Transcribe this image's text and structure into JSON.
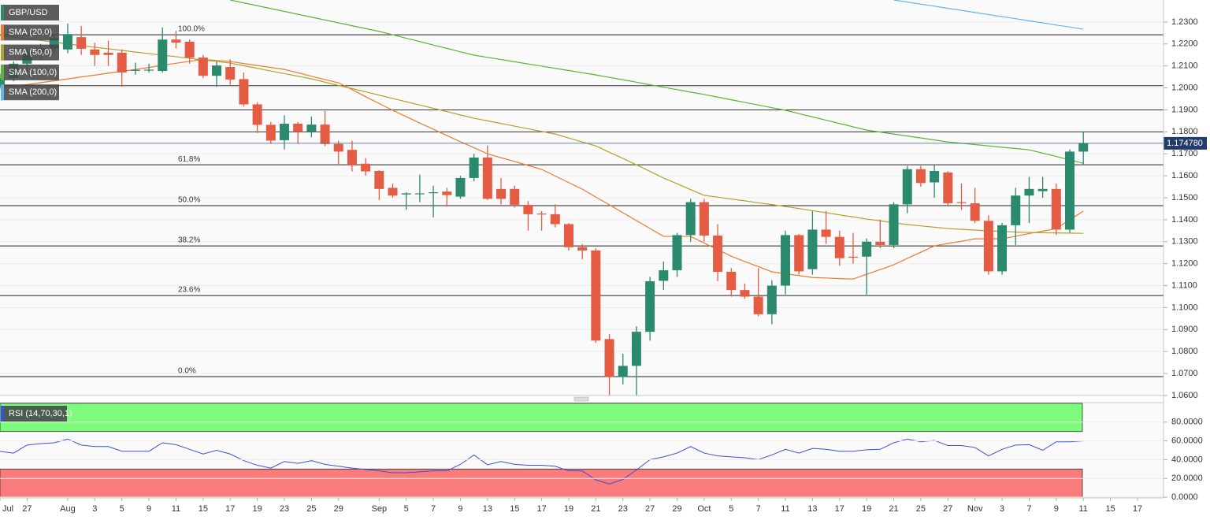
{
  "chart_data": [
    {
      "type": "candlestick",
      "categories": [
        "Jul",
        null,
        "27",
        null,
        null,
        "Aug",
        null,
        "3",
        null,
        "5",
        null,
        "9",
        null,
        "11",
        null,
        "15",
        null,
        "17",
        null,
        "19",
        null,
        "23",
        null,
        "25",
        null,
        "29",
        null,
        null,
        "Sep",
        null,
        "5",
        null,
        "7",
        null,
        "9",
        null,
        "13",
        null,
        "15",
        null,
        "17",
        null,
        "19",
        null,
        "21",
        null,
        "23",
        null,
        "27",
        null,
        "29",
        null,
        "Oct",
        null,
        "5",
        null,
        "7",
        null,
        "11",
        null,
        "13",
        null,
        "17",
        null,
        "19",
        null,
        "21",
        null,
        "25",
        null,
        "27",
        null,
        "Nov",
        null,
        "3",
        null,
        "7",
        null,
        "9",
        null,
        "11",
        null,
        "15",
        null,
        "17"
      ],
      "series": [
        {
          "name": "GBP/USD",
          "up_color": "#2b8a6e",
          "down_color": "#e35c43",
          "open": [
            1.201,
            1.2045,
            1.211,
            1.2165,
            1.218,
            1.2175,
            1.2231,
            1.2175,
            1.216,
            1.216,
            1.2078,
            1.208,
            1.2077,
            1.222,
            1.221,
            1.2138,
            1.2055,
            1.2095,
            1.204,
            1.1925,
            1.1832,
            1.1762,
            1.1837,
            1.18,
            1.1833,
            1.1745,
            1.1718,
            1.1655,
            1.1622,
            1.1545,
            1.1515,
            1.1518,
            1.1522,
            1.1528,
            1.1505,
            1.159,
            1.1683,
            1.154,
            1.154,
            1.1468,
            1.1428,
            1.1425,
            1.138,
            1.1275,
            1.126,
            1.0857,
            1.0685,
            1.0735,
            1.089,
            1.1122,
            1.117,
            1.133,
            1.148,
            1.1328,
            1.1163,
            1.108,
            1.105,
            1.097,
            1.11,
            1.133,
            1.1175,
            1.1355,
            1.1322,
            1.1232,
            1.1232,
            1.13,
            1.1285,
            1.147,
            1.163,
            1.157,
            1.1615,
            1.148,
            1.1475,
            1.1395,
            1.1165,
            1.1375,
            1.151,
            1.153,
            1.154,
            1.1355,
            1.171,
            null,
            null,
            null,
            null
          ],
          "high": [
            1.2065,
            1.212,
            1.218,
            1.22,
            1.2245,
            1.2293,
            1.2282,
            1.2205,
            1.2215,
            1.2175,
            1.2115,
            1.211,
            1.2275,
            1.226,
            1.222,
            1.215,
            1.212,
            1.213,
            1.207,
            1.1935,
            1.1845,
            1.1875,
            1.1845,
            1.187,
            1.1895,
            1.176,
            1.176,
            1.168,
            1.1625,
            1.1565,
            1.1525,
            1.1605,
            1.1555,
            1.1545,
            1.16,
            1.17,
            1.1738,
            1.159,
            1.1555,
            1.1485,
            1.144,
            1.147,
            1.1385,
            1.129,
            1.127,
            1.088,
            1.079,
            1.0915,
            1.114,
            1.121,
            1.134,
            1.1495,
            1.1495,
            1.138,
            1.118,
            1.111,
            1.118,
            1.1125,
            1.135,
            1.1335,
            1.144,
            1.144,
            1.135,
            1.134,
            1.1315,
            1.14,
            1.148,
            1.1645,
            1.1645,
            1.165,
            1.162,
            1.1565,
            1.1545,
            1.142,
            1.1385,
            1.1545,
            1.1595,
            1.1595,
            1.1565,
            1.172,
            1.18,
            null,
            null,
            null,
            null
          ],
          "low": [
            1.2,
            1.203,
            1.206,
            1.213,
            1.216,
            1.2158,
            1.215,
            1.21,
            1.21,
            1.2005,
            1.206,
            1.207,
            1.207,
            1.218,
            1.211,
            1.2045,
            1.2005,
            1.2015,
            1.1915,
            1.1795,
            1.1745,
            1.172,
            1.1745,
            1.1775,
            1.1735,
            1.165,
            1.162,
            1.16,
            1.149,
            1.15,
            1.1445,
            1.148,
            1.141,
            1.146,
            1.1495,
            1.1575,
            1.149,
            1.147,
            1.1455,
            1.135,
            1.135,
            1.1365,
            1.126,
            1.122,
            1.084,
            1.06,
            1.065,
            1.06,
            1.085,
            1.108,
            1.114,
            1.13,
            1.13,
            1.112,
            1.105,
            1.104,
            1.096,
            1.0925,
            1.106,
            1.115,
            1.115,
            1.129,
            1.119,
            1.12,
            1.106,
            1.127,
            1.127,
            1.143,
            1.155,
            1.15,
            1.146,
            1.1445,
            1.1385,
            1.115,
            1.115,
            1.1285,
            1.1385,
            1.15,
            1.133,
            1.134,
            1.165,
            null,
            null,
            null,
            null
          ],
          "close": [
            1.2045,
            1.211,
            1.2165,
            1.218,
            1.2225,
            1.2245,
            1.2178,
            1.215,
            1.215,
            1.207,
            1.2082,
            1.2083,
            1.222,
            1.2206,
            1.2138,
            1.2055,
            1.2102,
            1.2038,
            1.1925,
            1.1832,
            1.176,
            1.1837,
            1.18,
            1.1833,
            1.1745,
            1.171,
            1.1647,
            1.162,
            1.154,
            1.151,
            1.152,
            1.152,
            1.1525,
            1.1512,
            1.159,
            1.1683,
            1.1495,
            1.1495,
            1.1468,
            1.1425,
            1.1425,
            1.138,
            1.1275,
            1.126,
            1.085,
            1.0685,
            1.0735,
            1.089,
            1.112,
            1.117,
            1.133,
            1.148,
            1.1328,
            1.1163,
            1.108,
            1.105,
            1.097,
            1.11,
            1.133,
            1.1165,
            1.1355,
            1.1322,
            1.1225,
            1.123,
            1.13,
            1.1285,
            1.147,
            1.163,
            1.1567,
            1.1622,
            1.1475,
            1.1478,
            1.1395,
            1.1165,
            1.1375,
            1.151,
            1.154,
            1.154,
            1.1355,
            1.171,
            1.1748,
            null,
            null,
            null,
            null
          ]
        },
        {
          "name": "SMA (20,0)",
          "color": "#ec7a2f",
          "values": [
            1.1998,
            1.2007,
            1.2015,
            1.2024,
            1.2032,
            1.2041,
            1.205,
            1.2058,
            1.2067,
            1.2075,
            1.2084,
            1.2093,
            1.2103,
            1.2112,
            1.2121,
            1.213,
            1.2125,
            1.212,
            1.2111,
            1.2102,
            1.2093,
            1.2084,
            1.2069,
            1.2053,
            1.2038,
            1.2023,
            1.1992,
            1.196,
            1.1929,
            1.1898,
            1.1869,
            1.184,
            1.1812,
            1.1783,
            1.1755,
            1.1728,
            1.17,
            1.1682,
            1.1665,
            1.1647,
            1.1629,
            1.1599,
            1.1569,
            1.1539,
            1.1503,
            1.1468,
            1.1432,
            1.1396,
            1.136,
            1.1324,
            1.1324,
            1.1324,
            1.1294,
            1.1264,
            1.1234,
            1.121,
            1.1187,
            1.1163,
            1.1154,
            1.1146,
            1.1137,
            1.1135,
            1.1132,
            1.113,
            1.1152,
            1.1173,
            1.1195,
            1.1224,
            1.1252,
            1.1281,
            1.1292,
            1.1302,
            1.1313,
            1.1313,
            1.1313,
            1.1325,
            1.1337,
            1.1348,
            1.136,
            1.14,
            1.1439,
            null,
            null,
            null,
            null
          ]
        },
        {
          "name": "SMA (50,0)",
          "color": "#b3a02c",
          "values": [
            1.2239,
            1.2231,
            1.2223,
            1.2216,
            1.2208,
            1.22,
            1.2192,
            1.2185,
            1.2178,
            1.2171,
            1.2163,
            1.2156,
            1.2149,
            1.2142,
            1.2135,
            1.2127,
            1.212,
            1.2113,
            1.2101,
            1.2089,
            1.2077,
            1.2065,
            1.2053,
            1.2041,
            1.2026,
            1.2011,
            1.1997,
            1.1982,
            1.1967,
            1.1952,
            1.1937,
            1.1922,
            1.1907,
            1.1892,
            1.1877,
            1.1862,
            1.185,
            1.1838,
            1.1826,
            1.1814,
            1.1802,
            1.179,
            1.1772,
            1.1754,
            1.1736,
            1.1707,
            1.1679,
            1.165,
            1.162,
            1.159,
            1.1564,
            1.1537,
            1.1511,
            1.1503,
            1.1494,
            1.1486,
            1.1477,
            1.1469,
            1.146,
            1.1451,
            1.1441,
            1.1432,
            1.1422,
            1.1413,
            1.1403,
            1.1395,
            1.1386,
            1.1378,
            1.1372,
            1.1366,
            1.136,
            1.1356,
            1.1353,
            1.1349,
            1.1347,
            1.1344,
            1.1342,
            1.1341,
            1.134,
            1.1339,
            1.1338,
            null,
            null,
            null,
            null
          ]
        },
        {
          "name": "SMA (100,0)",
          "color": "#5cb336",
          "values": [
            null,
            null,
            null,
            null,
            null,
            null,
            null,
            null,
            null,
            null,
            null,
            null,
            null,
            null,
            null,
            null,
            null,
            1.24,
            1.2387,
            1.2374,
            1.2361,
            1.2348,
            1.2335,
            1.2322,
            1.2309,
            1.2296,
            1.2283,
            1.227,
            1.2257,
            1.2242,
            1.2226,
            1.2211,
            1.2195,
            1.218,
            1.2164,
            1.2149,
            1.2139,
            1.2129,
            1.2119,
            1.2109,
            1.2099,
            1.2089,
            1.2079,
            1.2069,
            1.2059,
            1.2048,
            1.2037,
            1.2026,
            1.2014,
            1.2003,
            1.1992,
            1.1981,
            1.197,
            1.1958,
            1.1946,
            1.1934,
            1.1922,
            1.191,
            1.1898,
            1.1883,
            1.1868,
            1.1853,
            1.1838,
            1.1823,
            1.1808,
            1.1799,
            1.179,
            1.1781,
            1.1772,
            1.1763,
            1.1754,
            1.1748,
            1.1742,
            1.1736,
            1.173,
            1.1724,
            1.1718,
            1.1703,
            1.1688,
            1.1672,
            1.1657,
            null,
            null,
            null,
            null
          ]
        },
        {
          "name": "SMA (200,0)",
          "color": "#62b4ea",
          "values": [
            null,
            null,
            null,
            null,
            null,
            null,
            null,
            null,
            null,
            null,
            null,
            null,
            null,
            null,
            null,
            null,
            null,
            null,
            null,
            null,
            null,
            null,
            null,
            null,
            null,
            null,
            null,
            null,
            null,
            null,
            null,
            null,
            null,
            null,
            null,
            null,
            null,
            null,
            null,
            null,
            null,
            null,
            null,
            null,
            null,
            null,
            null,
            null,
            null,
            null,
            null,
            null,
            null,
            null,
            null,
            null,
            null,
            null,
            null,
            null,
            null,
            null,
            null,
            null,
            null,
            null,
            1.24,
            1.2391,
            1.2381,
            1.2372,
            1.2362,
            1.2353,
            1.2343,
            1.2334,
            1.2324,
            1.2315,
            1.2305,
            1.2296,
            1.2286,
            1.2277,
            1.2267,
            null,
            null,
            null,
            null
          ]
        }
      ],
      "ylim": [
        1.06,
        1.24
      ],
      "yticks": [
        {
          "value": 1.06,
          "label": "1.0600"
        },
        {
          "value": 1.07,
          "label": "1.0700"
        },
        {
          "value": 1.08,
          "label": "1.0800"
        },
        {
          "value": 1.09,
          "label": "1.0900"
        },
        {
          "value": 1.1,
          "label": "1.1000"
        },
        {
          "value": 1.11,
          "label": "1.1100"
        },
        {
          "value": 1.12,
          "label": "1.1200"
        },
        {
          "value": 1.13,
          "label": "1.1300"
        },
        {
          "value": 1.14,
          "label": "1.1400"
        },
        {
          "value": 1.15,
          "label": "1.1500"
        },
        {
          "value": 1.16,
          "label": "1.1600"
        },
        {
          "value": 1.17,
          "label": "1.1700"
        },
        {
          "value": 1.18,
          "label": "1.1800"
        },
        {
          "value": 1.19,
          "label": "1.1900"
        },
        {
          "value": 1.2,
          "label": "1.2000"
        },
        {
          "value": 1.21,
          "label": "1.2100"
        },
        {
          "value": 1.22,
          "label": "1.2200"
        },
        {
          "value": 1.23,
          "label": "1.2300"
        }
      ],
      "grid": true,
      "lines": [
        1.201,
        1.19,
        1.18
      ],
      "fib_levels": [
        {
          "text": "100.0%",
          "price": 1.2242
        },
        {
          "text": "61.8%",
          "price": 1.165
        },
        {
          "text": "50.0%",
          "price": 1.1464
        },
        {
          "text": "38.2%",
          "price": 1.1281
        },
        {
          "text": "23.6%",
          "price": 1.1055
        },
        {
          "text": "0.0%",
          "price": 1.0686
        }
      ],
      "last_price": {
        "value": 1.17478,
        "label": "1.174780"
      }
    },
    {
      "type": "line",
      "series": [
        {
          "name": "RSI (14,70,30,1)",
          "color": "#3a50d8",
          "values": [
            48.8,
            47,
            55.6,
            57,
            58,
            62,
            55.6,
            54,
            54,
            49,
            49,
            49,
            58,
            56,
            51,
            46,
            50,
            46,
            39,
            34,
            31,
            38,
            36,
            39,
            35,
            33,
            31,
            29.5,
            28,
            26,
            26,
            27,
            28,
            28,
            35,
            45,
            34.5,
            38,
            35,
            34,
            34,
            33,
            28,
            28,
            18.5,
            14,
            19,
            29,
            40,
            43,
            47,
            54,
            47,
            44,
            43,
            42,
            40,
            45,
            51,
            47,
            52,
            51,
            49,
            49,
            50.5,
            51,
            58,
            62,
            59,
            60.5,
            55,
            55,
            53,
            44,
            51,
            55.6,
            56,
            50,
            59,
            59,
            60,
            null,
            null,
            null,
            null
          ]
        }
      ],
      "bands": [
        {
          "from": 70,
          "to": 100,
          "color": "#7cfb7c"
        },
        {
          "from": 0,
          "to": 30,
          "color": "#fa7b7b"
        }
      ],
      "ylim": [
        0,
        100
      ],
      "yticks": [
        {
          "value": 0,
          "label": "0.0000"
        },
        {
          "value": 20,
          "label": "20.0000"
        },
        {
          "value": 40,
          "label": "40.0000"
        },
        {
          "value": 60,
          "label": "60.0000"
        },
        {
          "value": 80,
          "label": "80.0000"
        }
      ]
    }
  ]
}
